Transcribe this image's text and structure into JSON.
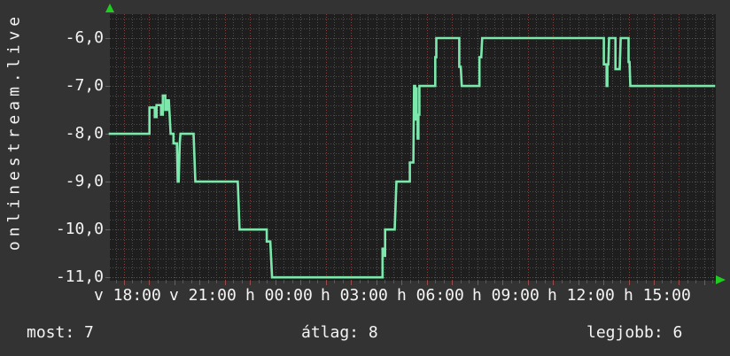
{
  "title_vertical": "onlinestream.live",
  "footer": {
    "most": "most: 7",
    "atlag": "átlag: 8",
    "legjobb": "legjobb: 6"
  },
  "colors": {
    "outer_background": "#333333",
    "plot_background": "#1e1e1e",
    "line": "#7ce8ac",
    "grid_major": "#8a413d",
    "grid_minor": "#4d4d4d",
    "tick": "#a04a43",
    "axis_arrow": "#21cc21",
    "text": "#f4f4f4"
  },
  "chart_data": {
    "type": "line",
    "title": "onlinestream.live",
    "xlabel": "",
    "ylabel": "",
    "x_unit": "hours since Sunday 18:00",
    "xlim": [
      -1.05,
      22.97
    ],
    "ylim": [
      -11.07,
      -5.5
    ],
    "grid": {
      "minor_x_step": 0.3333,
      "major_x_step": 1,
      "x_grid_phase": -0.49,
      "minor_y_step": 0.2,
      "major_y_step": 1,
      "style": "dotted"
    },
    "y_ticks": [
      {
        "v": -6,
        "label": "-6,0"
      },
      {
        "v": -7,
        "label": "-7,0"
      },
      {
        "v": -8,
        "label": "-8,0"
      },
      {
        "v": -9,
        "label": "-9,0"
      },
      {
        "v": -10,
        "label": "-10,0"
      },
      {
        "v": -11,
        "label": "-11,0"
      }
    ],
    "x_ticks": [
      {
        "h": 0,
        "label": "v 18:00"
      },
      {
        "h": 3,
        "label": "v 21:00"
      },
      {
        "h": 6,
        "label": "h 00:00"
      },
      {
        "h": 9,
        "label": "h 03:00"
      },
      {
        "h": 12,
        "label": "h 06:00"
      },
      {
        "h": 15,
        "label": "h 09:00"
      },
      {
        "h": 18,
        "label": "h 12:00"
      },
      {
        "h": 21,
        "label": "h 15:00"
      }
    ],
    "summary": {
      "most": 7,
      "atlag": 8,
      "legjobb": 6
    },
    "series": [
      {
        "name": "onlinestream.live",
        "color": "#7ce8ac",
        "points": [
          [
            -1.05,
            -8
          ],
          [
            0.52,
            -8
          ],
          [
            0.52,
            -7.45
          ],
          [
            0.73,
            -7.45
          ],
          [
            0.73,
            -7.65
          ],
          [
            0.8,
            -7.65
          ],
          [
            0.8,
            -7.4
          ],
          [
            0.98,
            -7.4
          ],
          [
            0.98,
            -7.6
          ],
          [
            1.05,
            -7.6
          ],
          [
            1.05,
            -7.2
          ],
          [
            1.15,
            -7.2
          ],
          [
            1.15,
            -7.5
          ],
          [
            1.22,
            -7.5
          ],
          [
            1.22,
            -7.3
          ],
          [
            1.29,
            -7.3
          ],
          [
            1.36,
            -8
          ],
          [
            1.47,
            -8
          ],
          [
            1.47,
            -8.2
          ],
          [
            1.61,
            -8.2
          ],
          [
            1.64,
            -9
          ],
          [
            1.68,
            -9
          ],
          [
            1.72,
            -8.2
          ],
          [
            1.75,
            -8
          ],
          [
            2.27,
            -8
          ],
          [
            2.34,
            -9
          ],
          [
            4.02,
            -9
          ],
          [
            4.09,
            -10
          ],
          [
            5.17,
            -10
          ],
          [
            5.17,
            -10.25
          ],
          [
            5.31,
            -10.25
          ],
          [
            5.38,
            -11
          ],
          [
            9.76,
            -11
          ],
          [
            9.76,
            -10.4
          ],
          [
            9.8,
            -10.4
          ],
          [
            9.8,
            -10.55
          ],
          [
            9.86,
            -10.55
          ],
          [
            9.86,
            -10
          ],
          [
            10.24,
            -10
          ],
          [
            10.31,
            -9
          ],
          [
            10.84,
            -9
          ],
          [
            10.84,
            -8.6
          ],
          [
            10.98,
            -8.6
          ],
          [
            11.01,
            -7
          ],
          [
            11.05,
            -7
          ],
          [
            11.05,
            -7.7
          ],
          [
            11.08,
            -7.7
          ],
          [
            11.08,
            -7.05
          ],
          [
            11.11,
            -7.05
          ],
          [
            11.11,
            -7.6
          ],
          [
            11.15,
            -7.6
          ],
          [
            11.15,
            -8.1
          ],
          [
            11.18,
            -8.1
          ],
          [
            11.18,
            -7.6
          ],
          [
            11.22,
            -7.6
          ],
          [
            11.22,
            -7
          ],
          [
            11.85,
            -7
          ],
          [
            11.85,
            -6.4
          ],
          [
            11.89,
            -6.4
          ],
          [
            11.89,
            -6
          ],
          [
            12.8,
            -6
          ],
          [
            12.8,
            -6.6
          ],
          [
            12.86,
            -6.6
          ],
          [
            12.9,
            -7
          ],
          [
            13.6,
            -7
          ],
          [
            13.6,
            -6.4
          ],
          [
            13.67,
            -6.4
          ],
          [
            13.71,
            -6
          ],
          [
            18.53,
            -6
          ],
          [
            18.53,
            -6.55
          ],
          [
            18.64,
            -6.55
          ],
          [
            18.64,
            -7
          ],
          [
            18.67,
            -7
          ],
          [
            18.67,
            -6.55
          ],
          [
            18.71,
            -6.55
          ],
          [
            18.74,
            -6
          ],
          [
            18.99,
            -6
          ],
          [
            18.99,
            -6.65
          ],
          [
            19.16,
            -6.65
          ],
          [
            19.2,
            -6
          ],
          [
            19.51,
            -6
          ],
          [
            19.51,
            -6.5
          ],
          [
            19.55,
            -6.5
          ],
          [
            19.58,
            -7
          ],
          [
            22.9,
            -7
          ]
        ]
      }
    ]
  }
}
